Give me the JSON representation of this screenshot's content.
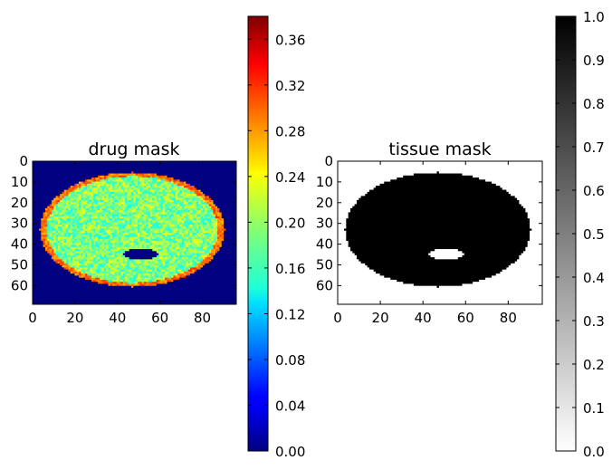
{
  "chart_data": [
    {
      "type": "heatmap",
      "title": "drug mask",
      "xlabel": "",
      "ylabel": "",
      "xlim": [
        0,
        96
      ],
      "ylim": [
        69,
        0
      ],
      "x_ticks": [
        "0",
        "20",
        "40",
        "60",
        "80"
      ],
      "y_ticks": [
        "0",
        "10",
        "20",
        "30",
        "40",
        "50",
        "60"
      ],
      "colormap": "jet",
      "colorbar": {
        "range": [
          0.0,
          0.38
        ],
        "ticks": [
          "0.00",
          "0.04",
          "0.08",
          "0.12",
          "0.16",
          "0.20",
          "0.24",
          "0.28",
          "0.32",
          "0.36"
        ]
      },
      "regions": {
        "background_value": 0.0,
        "tissue_typical_value": 0.19,
        "rim_value": 0.29,
        "cavity_value": 0.0
      }
    },
    {
      "type": "heatmap",
      "title": "tissue mask",
      "xlabel": "",
      "ylabel": "",
      "xlim": [
        0,
        96
      ],
      "ylim": [
        69,
        0
      ],
      "x_ticks": [
        "0",
        "20",
        "40",
        "60",
        "80"
      ],
      "y_ticks": [
        "0",
        "10",
        "20",
        "30",
        "40",
        "50",
        "60"
      ],
      "colormap": "gray_r",
      "colorbar": {
        "range": [
          0.0,
          1.0
        ],
        "ticks": [
          "0.0",
          "0.1",
          "0.2",
          "0.3",
          "0.4",
          "0.5",
          "0.6",
          "0.7",
          "0.8",
          "0.9",
          "1.0"
        ]
      },
      "regions": {
        "background_value": 0.0,
        "tissue_value": 1.0,
        "cavity_value": 0.0
      }
    }
  ]
}
